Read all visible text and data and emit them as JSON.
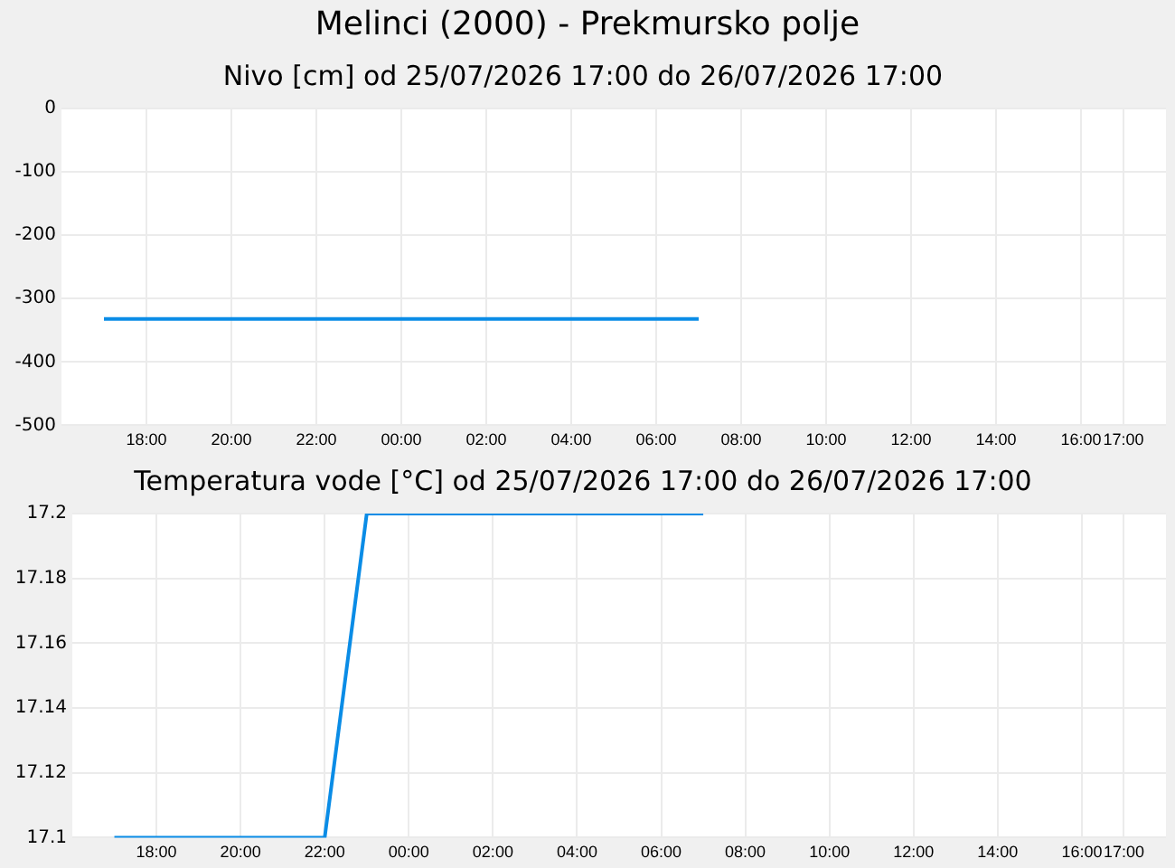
{
  "chart_data": [
    {
      "type": "line",
      "title": "Melinci (2000) - Prekmursko polje",
      "subtitle": "Nivo [cm] od 25/07/2026 17:00 do 26/07/2026 17:00",
      "x": [
        "2026-07-25T17:00",
        "2026-07-26T07:00"
      ],
      "series": [
        {
          "color": "#0a8ce6",
          "values": [
            -332,
            -332
          ]
        }
      ],
      "xlim": [
        "2026-07-25T16:00",
        "2026-07-26T18:00"
      ],
      "xticks": [
        {
          "value": "2026-07-25T18:00",
          "label": "18:00"
        },
        {
          "value": "2026-07-25T20:00",
          "label": "20:00"
        },
        {
          "value": "2026-07-25T22:00",
          "label": "22:00"
        },
        {
          "value": "2026-07-26T00:00",
          "label": "00:00"
        },
        {
          "value": "2026-07-26T02:00",
          "label": "02:00"
        },
        {
          "value": "2026-07-26T04:00",
          "label": "04:00"
        },
        {
          "value": "2026-07-26T06:00",
          "label": "06:00"
        },
        {
          "value": "2026-07-26T08:00",
          "label": "08:00"
        },
        {
          "value": "2026-07-26T10:00",
          "label": "10:00"
        },
        {
          "value": "2026-07-26T12:00",
          "label": "12:00"
        },
        {
          "value": "2026-07-26T14:00",
          "label": "14:00"
        },
        {
          "value": "2026-07-26T16:00",
          "label": "16:00"
        },
        {
          "value": "2026-07-26T17:00",
          "label": "17:00"
        }
      ],
      "ylim": [
        -500,
        0
      ],
      "yticks": [
        -500,
        -400,
        -300,
        -200,
        -100,
        0
      ],
      "grid": true,
      "legend": false,
      "marker": "none"
    },
    {
      "type": "line",
      "title": "Temperatura vode [°C] od 25/07/2026 17:00 do 26/07/2026 17:00",
      "x": [
        "2026-07-25T17:00",
        "2026-07-25T22:00",
        "2026-07-25T23:00",
        "2026-07-26T07:00"
      ],
      "series": [
        {
          "color": "#0a8ce6",
          "values": [
            17.1,
            17.1,
            17.2,
            17.2
          ]
        }
      ],
      "xlim": [
        "2026-07-25T16:00",
        "2026-07-26T18:00"
      ],
      "xticks": [
        {
          "value": "2026-07-25T18:00",
          "label": "18:00"
        },
        {
          "value": "2026-07-25T20:00",
          "label": "20:00"
        },
        {
          "value": "2026-07-25T22:00",
          "label": "22:00"
        },
        {
          "value": "2026-07-26T00:00",
          "label": "00:00"
        },
        {
          "value": "2026-07-26T02:00",
          "label": "02:00"
        },
        {
          "value": "2026-07-26T04:00",
          "label": "04:00"
        },
        {
          "value": "2026-07-26T06:00",
          "label": "06:00"
        },
        {
          "value": "2026-07-26T08:00",
          "label": "08:00"
        },
        {
          "value": "2026-07-26T10:00",
          "label": "10:00"
        },
        {
          "value": "2026-07-26T12:00",
          "label": "12:00"
        },
        {
          "value": "2026-07-26T14:00",
          "label": "14:00"
        },
        {
          "value": "2026-07-26T16:00",
          "label": "16:00"
        },
        {
          "value": "2026-07-26T17:00",
          "label": "17:00"
        }
      ],
      "ylim": [
        17.1,
        17.2
      ],
      "yticks": [
        17.1,
        17.12,
        17.14,
        17.16,
        17.18,
        17.2
      ],
      "grid": true,
      "legend": false,
      "marker": "none"
    }
  ]
}
